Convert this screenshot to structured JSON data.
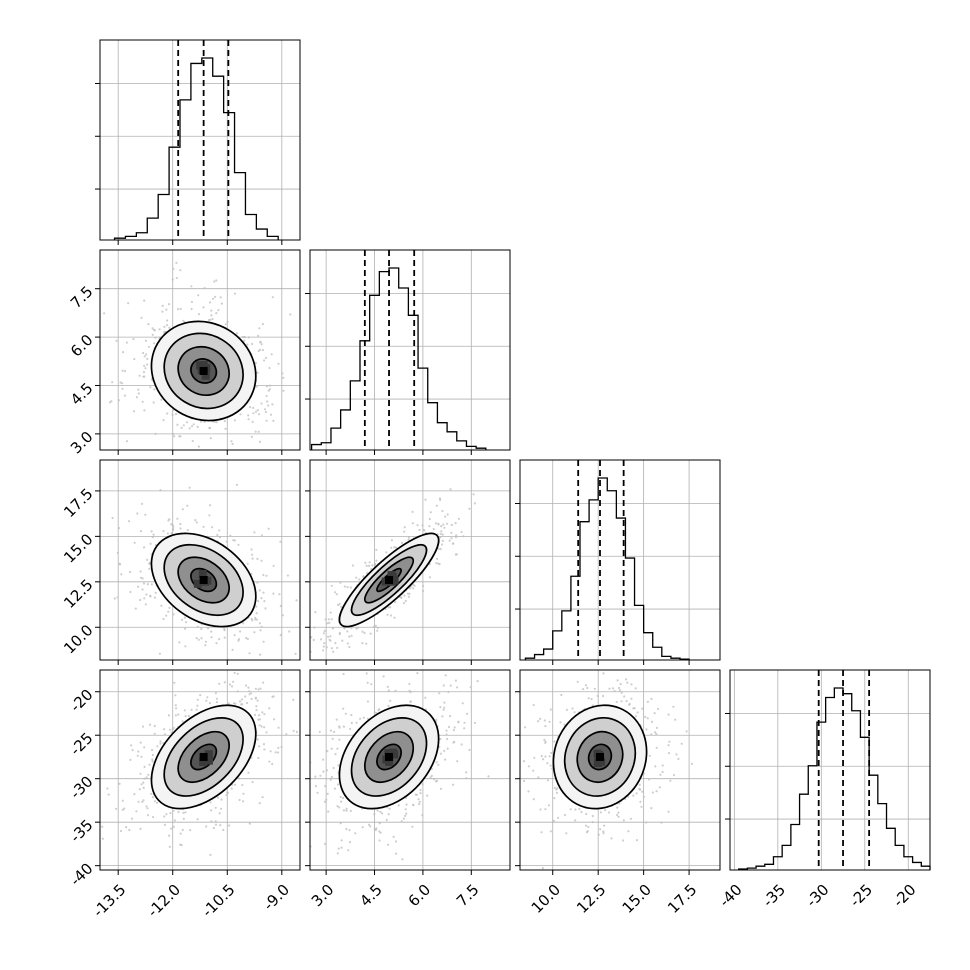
{
  "chart_data": {
    "type": "corner",
    "parameters": [
      {
        "ticks": [
          "-13.5",
          "-12.0",
          "-10.5",
          "-9.0"
        ],
        "tick_values": [
          -13.5,
          -12.0,
          -10.5,
          -9.0
        ],
        "range": [
          -14.0,
          -8.5
        ],
        "quantiles": [
          -11.85,
          -11.15,
          -10.47
        ],
        "hist_edges": [
          -13.6,
          -13.3,
          -13.0,
          -12.7,
          -12.4,
          -12.1,
          -11.8,
          -11.5,
          -11.2,
          -10.9,
          -10.6,
          -10.3,
          -10.0,
          -9.7,
          -9.4,
          -9.1
        ],
        "hist_counts": [
          1,
          2,
          4,
          12,
          25,
          51,
          77,
          97,
          100,
          90,
          70,
          37,
          14,
          6,
          2
        ]
      },
      {
        "ticks": [
          "3.0",
          "4.5",
          "6.0",
          "7.5"
        ],
        "tick_values": [
          3.0,
          4.5,
          6.0,
          7.5
        ],
        "range": [
          2.5,
          8.7
        ],
        "quantiles": [
          4.2,
          4.95,
          5.73
        ],
        "hist_edges": [
          2.55,
          2.85,
          3.15,
          3.45,
          3.75,
          4.05,
          4.35,
          4.65,
          4.95,
          5.25,
          5.55,
          5.85,
          6.15,
          6.45,
          6.75,
          7.05,
          7.35,
          7.65,
          7.95
        ],
        "hist_counts": [
          3,
          4,
          12,
          22,
          38,
          60,
          85,
          98,
          100,
          89,
          74,
          45,
          26,
          15,
          10,
          5,
          2,
          1
        ]
      },
      {
        "ticks": [
          "10.0",
          "12.5",
          "15.0",
          "17.5"
        ],
        "tick_values": [
          10.0,
          12.5,
          15.0,
          17.5
        ],
        "range": [
          8.2,
          19.2
        ],
        "quantiles": [
          11.4,
          12.6,
          13.9
        ],
        "hist_edges": [
          8.5,
          9.0,
          9.5,
          10.0,
          10.5,
          11.0,
          11.5,
          12.0,
          12.5,
          13.0,
          13.5,
          14.0,
          14.5,
          15.0,
          15.5,
          16.0,
          16.5,
          17.0,
          17.5
        ],
        "hist_counts": [
          1,
          3,
          6,
          16,
          27,
          46,
          76,
          88,
          100,
          93,
          78,
          56,
          30,
          15,
          7,
          2,
          1,
          0.5
        ]
      },
      {
        "ticks": [
          "-40",
          "-35",
          "-30",
          "-25",
          "-20"
        ],
        "tick_values": [
          -40,
          -35,
          -30,
          -25,
          -20
        ],
        "range": [
          -40.5,
          -17.5
        ],
        "quantiles": [
          -30.3,
          -27.5,
          -24.5
        ],
        "hist_edges": [
          -39.5,
          -38.5,
          -37.5,
          -36.5,
          -35.5,
          -34.5,
          -33.5,
          -32.5,
          -31.5,
          -30.5,
          -29.5,
          -28.5,
          -27.5,
          -26.5,
          -25.5,
          -24.5,
          -23.5,
          -22.5,
          -21.5,
          -20.5,
          -19.5,
          -18.5,
          -17.5
        ],
        "hist_counts": [
          0.5,
          1,
          2,
          3,
          7,
          13,
          24,
          40,
          55,
          78,
          91,
          96,
          93,
          84,
          70,
          50,
          35,
          22,
          13,
          7,
          4,
          2
        ]
      }
    ],
    "pairs": [
      {
        "row": 1,
        "col": 0,
        "mean": [
          -11.15,
          4.95
        ],
        "sd": [
          0.7,
          0.75
        ],
        "rho": -0.1
      },
      {
        "row": 2,
        "col": 0,
        "mean": [
          -11.15,
          12.6
        ],
        "sd": [
          0.7,
          1.25
        ],
        "rho": -0.35
      },
      {
        "row": 2,
        "col": 1,
        "mean": [
          4.95,
          12.6
        ],
        "sd": [
          0.75,
          1.25
        ],
        "rho": 0.85
      },
      {
        "row": 3,
        "col": 0,
        "mean": [
          -11.15,
          -27.5
        ],
        "sd": [
          0.7,
          2.9
        ],
        "rho": 0.45
      },
      {
        "row": 3,
        "col": 1,
        "mean": [
          4.95,
          -27.5
        ],
        "sd": [
          0.75,
          2.9
        ],
        "rho": 0.35
      },
      {
        "row": 3,
        "col": 2,
        "mean": [
          12.6,
          -27.5
        ],
        "sd": [
          1.25,
          2.9
        ],
        "rho": 0.1
      }
    ],
    "contour_levels": [
      0.5,
      1.0,
      1.5,
      2.0
    ],
    "grid": true,
    "colors": {
      "line": "#000000",
      "scatter": "#bdbdbd",
      "density": "#3a3a3a",
      "grid": "#b0b0b0"
    }
  }
}
